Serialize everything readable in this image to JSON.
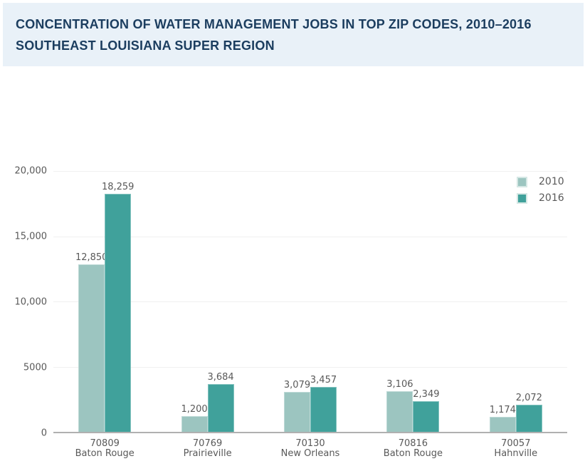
{
  "header": {
    "title_line1": "CONCENTRATION OF WATER MANAGEMENT JOBS IN TOP ZIP CODES, 2010–2016",
    "title_line2": "SOUTHEAST LOUISIANA SUPER REGION"
  },
  "chart_data": {
    "type": "bar",
    "title": "CONCENTRATION OF WATER MANAGEMENT JOBS IN TOP ZIP CODES, 2010–2016",
    "subtitle": "SOUTHEAST LOUISIANA SUPER REGION",
    "categories": [
      {
        "zip": "70809",
        "city": "Baton Rouge"
      },
      {
        "zip": "70769",
        "city": "Prairieville"
      },
      {
        "zip": "70130",
        "city": "New Orleans"
      },
      {
        "zip": "70816",
        "city": "Baton Rouge"
      },
      {
        "zip": "70057",
        "city": "Hahnville"
      }
    ],
    "series": [
      {
        "name": "2010",
        "color": "#9cc5c0",
        "values": [
          12850,
          1200,
          3079,
          3106,
          1174
        ],
        "labels": [
          "12,850",
          "1,200",
          "3,079",
          "3,106",
          "1,174"
        ]
      },
      {
        "name": "2016",
        "color": "#40a19b",
        "values": [
          18259,
          3684,
          3457,
          2349,
          2072
        ],
        "labels": [
          "18,259",
          "3,684",
          "3,457",
          "2,349",
          "2,072"
        ]
      }
    ],
    "y_ticks": [
      {
        "value": 20000,
        "label": "20,000"
      },
      {
        "value": 15000,
        "label": "15,000"
      },
      {
        "value": 10000,
        "label": "10,000"
      },
      {
        "value": 5000,
        "label": "5000"
      },
      {
        "value": 0,
        "label": "0"
      }
    ],
    "ylim": [
      0,
      20000
    ],
    "xlabel": "",
    "ylabel": "",
    "grid": true,
    "legend_position": "top-right"
  },
  "colors": {
    "banner_background": "#e9f1f8",
    "title_text": "#1b3d5f",
    "chart_text": "#595959",
    "axis_line": "#b0b0b0",
    "gridline": "#f0f0f0",
    "series_2010": "#9cc5c0",
    "series_2016": "#40a19b"
  }
}
